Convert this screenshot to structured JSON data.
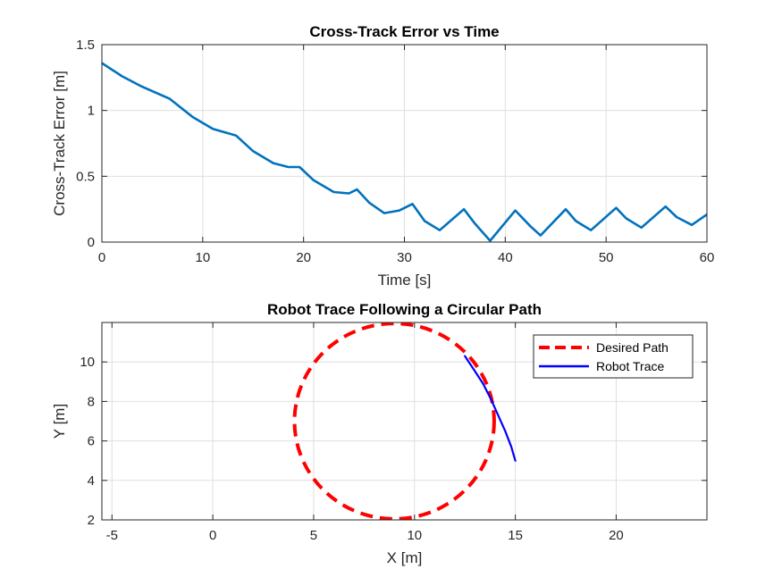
{
  "chart_data": [
    {
      "type": "line",
      "title": "Cross-Track Error vs Time",
      "xlabel": "Time [s]",
      "ylabel": "Cross-Track Error [m]",
      "xlim": [
        0,
        60
      ],
      "ylim": [
        0,
        1.5
      ],
      "xticks": [
        0,
        10,
        20,
        30,
        40,
        50,
        60
      ],
      "yticks": [
        0,
        0.5,
        1,
        1.5
      ],
      "xtick_labels": [
        "0",
        "10",
        "20",
        "30",
        "40",
        "50",
        "60"
      ],
      "ytick_labels": [
        "0",
        "0.5",
        "1",
        "1.5"
      ],
      "grid": true,
      "series": [
        {
          "color": "#0072BD",
          "x": [
            0,
            2,
            4,
            6.7,
            9,
            11,
            13.3,
            15,
            17,
            18.5,
            19.6,
            21,
            23,
            24.5,
            25.3,
            26.5,
            28,
            29.5,
            30.8,
            32,
            33.5,
            35.9,
            37,
            38.5,
            41,
            42.5,
            43.5,
            46,
            47,
            48.5,
            51,
            52,
            53.5,
            55.9,
            57,
            58.5,
            60
          ],
          "y": [
            1.36,
            1.26,
            1.18,
            1.09,
            0.95,
            0.86,
            0.81,
            0.69,
            0.6,
            0.57,
            0.57,
            0.47,
            0.38,
            0.37,
            0.4,
            0.3,
            0.22,
            0.24,
            0.29,
            0.16,
            0.09,
            0.25,
            0.14,
            0.01,
            0.24,
            0.12,
            0.05,
            0.25,
            0.16,
            0.09,
            0.26,
            0.18,
            0.11,
            0.27,
            0.19,
            0.13,
            0.21
          ]
        }
      ]
    },
    {
      "type": "line",
      "title": "Robot Trace Following a Circular Path",
      "xlabel": "X [m]",
      "ylabel": "Y [m]",
      "xlim": [
        -5.5,
        24.5
      ],
      "ylim": [
        2,
        12
      ],
      "xticks": [
        -5,
        0,
        5,
        10,
        15,
        20
      ],
      "yticks": [
        2,
        4,
        6,
        8,
        10
      ],
      "xtick_labels": [
        "-5",
        "0",
        "5",
        "10",
        "15",
        "20"
      ],
      "ytick_labels": [
        "2",
        "4",
        "6",
        "8",
        "10"
      ],
      "grid": true,
      "legend_position": "top-right",
      "series": [
        {
          "name": "Desired Path",
          "color": "#FF0000",
          "style": "dashed",
          "shape": "circle",
          "center": [
            9,
            7
          ],
          "radius": 4.95
        },
        {
          "name": "Robot Trace",
          "color": "#0000FF",
          "style": "solid",
          "x": [
            15,
            14.8,
            14.5,
            14.15,
            13.8,
            13.4,
            12.95,
            12.5
          ],
          "y": [
            5,
            5.7,
            6.5,
            7.3,
            8.1,
            8.9,
            9.6,
            10.3
          ]
        }
      ]
    }
  ]
}
